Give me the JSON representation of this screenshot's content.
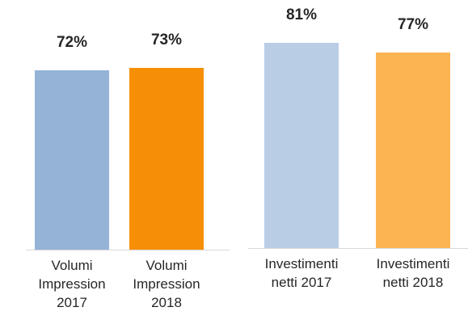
{
  "chart_data": [
    {
      "type": "bar",
      "categories": [
        "Volumi Impression 2017",
        "Volumi Impression 2018"
      ],
      "values": [
        72,
        73
      ],
      "value_labels": [
        "72%",
        "73%"
      ],
      "colors": [
        "#95b3d7",
        "#f78f06"
      ]
    },
    {
      "type": "bar",
      "categories": [
        "Investimenti netti 2017",
        "Investimenti netti 2018"
      ],
      "values": [
        81,
        77
      ],
      "value_labels": [
        "81%",
        "77%"
      ],
      "colors": [
        "#b9cde5",
        "#fcb452"
      ]
    }
  ]
}
